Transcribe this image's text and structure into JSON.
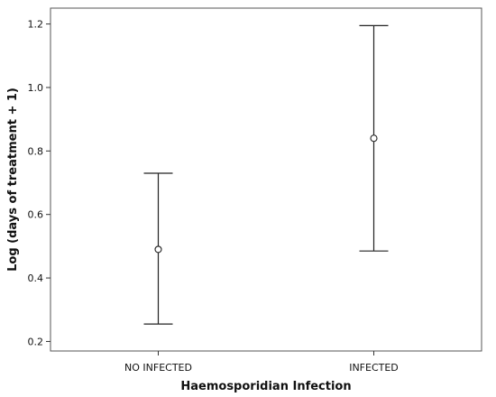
{
  "chart_data": {
    "type": "errorbar",
    "xlabel": "Haemosporidian Infection",
    "ylabel": "Log (days of treatment + 1)",
    "categories": [
      "NO INFECTED",
      "INFECTED"
    ],
    "series": [
      {
        "points": [
          {
            "category": "NO INFECTED",
            "mean": 0.49,
            "lower": 0.255,
            "upper": 0.73
          },
          {
            "category": "INFECTED",
            "mean": 0.84,
            "lower": 0.485,
            "upper": 1.195
          }
        ]
      }
    ],
    "ylim": [
      0.17,
      1.25
    ],
    "yticks": [
      0.2,
      0.4,
      0.6,
      0.8,
      1.0,
      1.2
    ],
    "ytick_labels": [
      "0.2",
      "0.4",
      "0.6",
      "0.8",
      "1.0",
      "1.2"
    ],
    "grid": false,
    "legend": "none",
    "colors": {
      "line": "#222222",
      "frame": "#555555",
      "background": "#ffffff"
    }
  }
}
